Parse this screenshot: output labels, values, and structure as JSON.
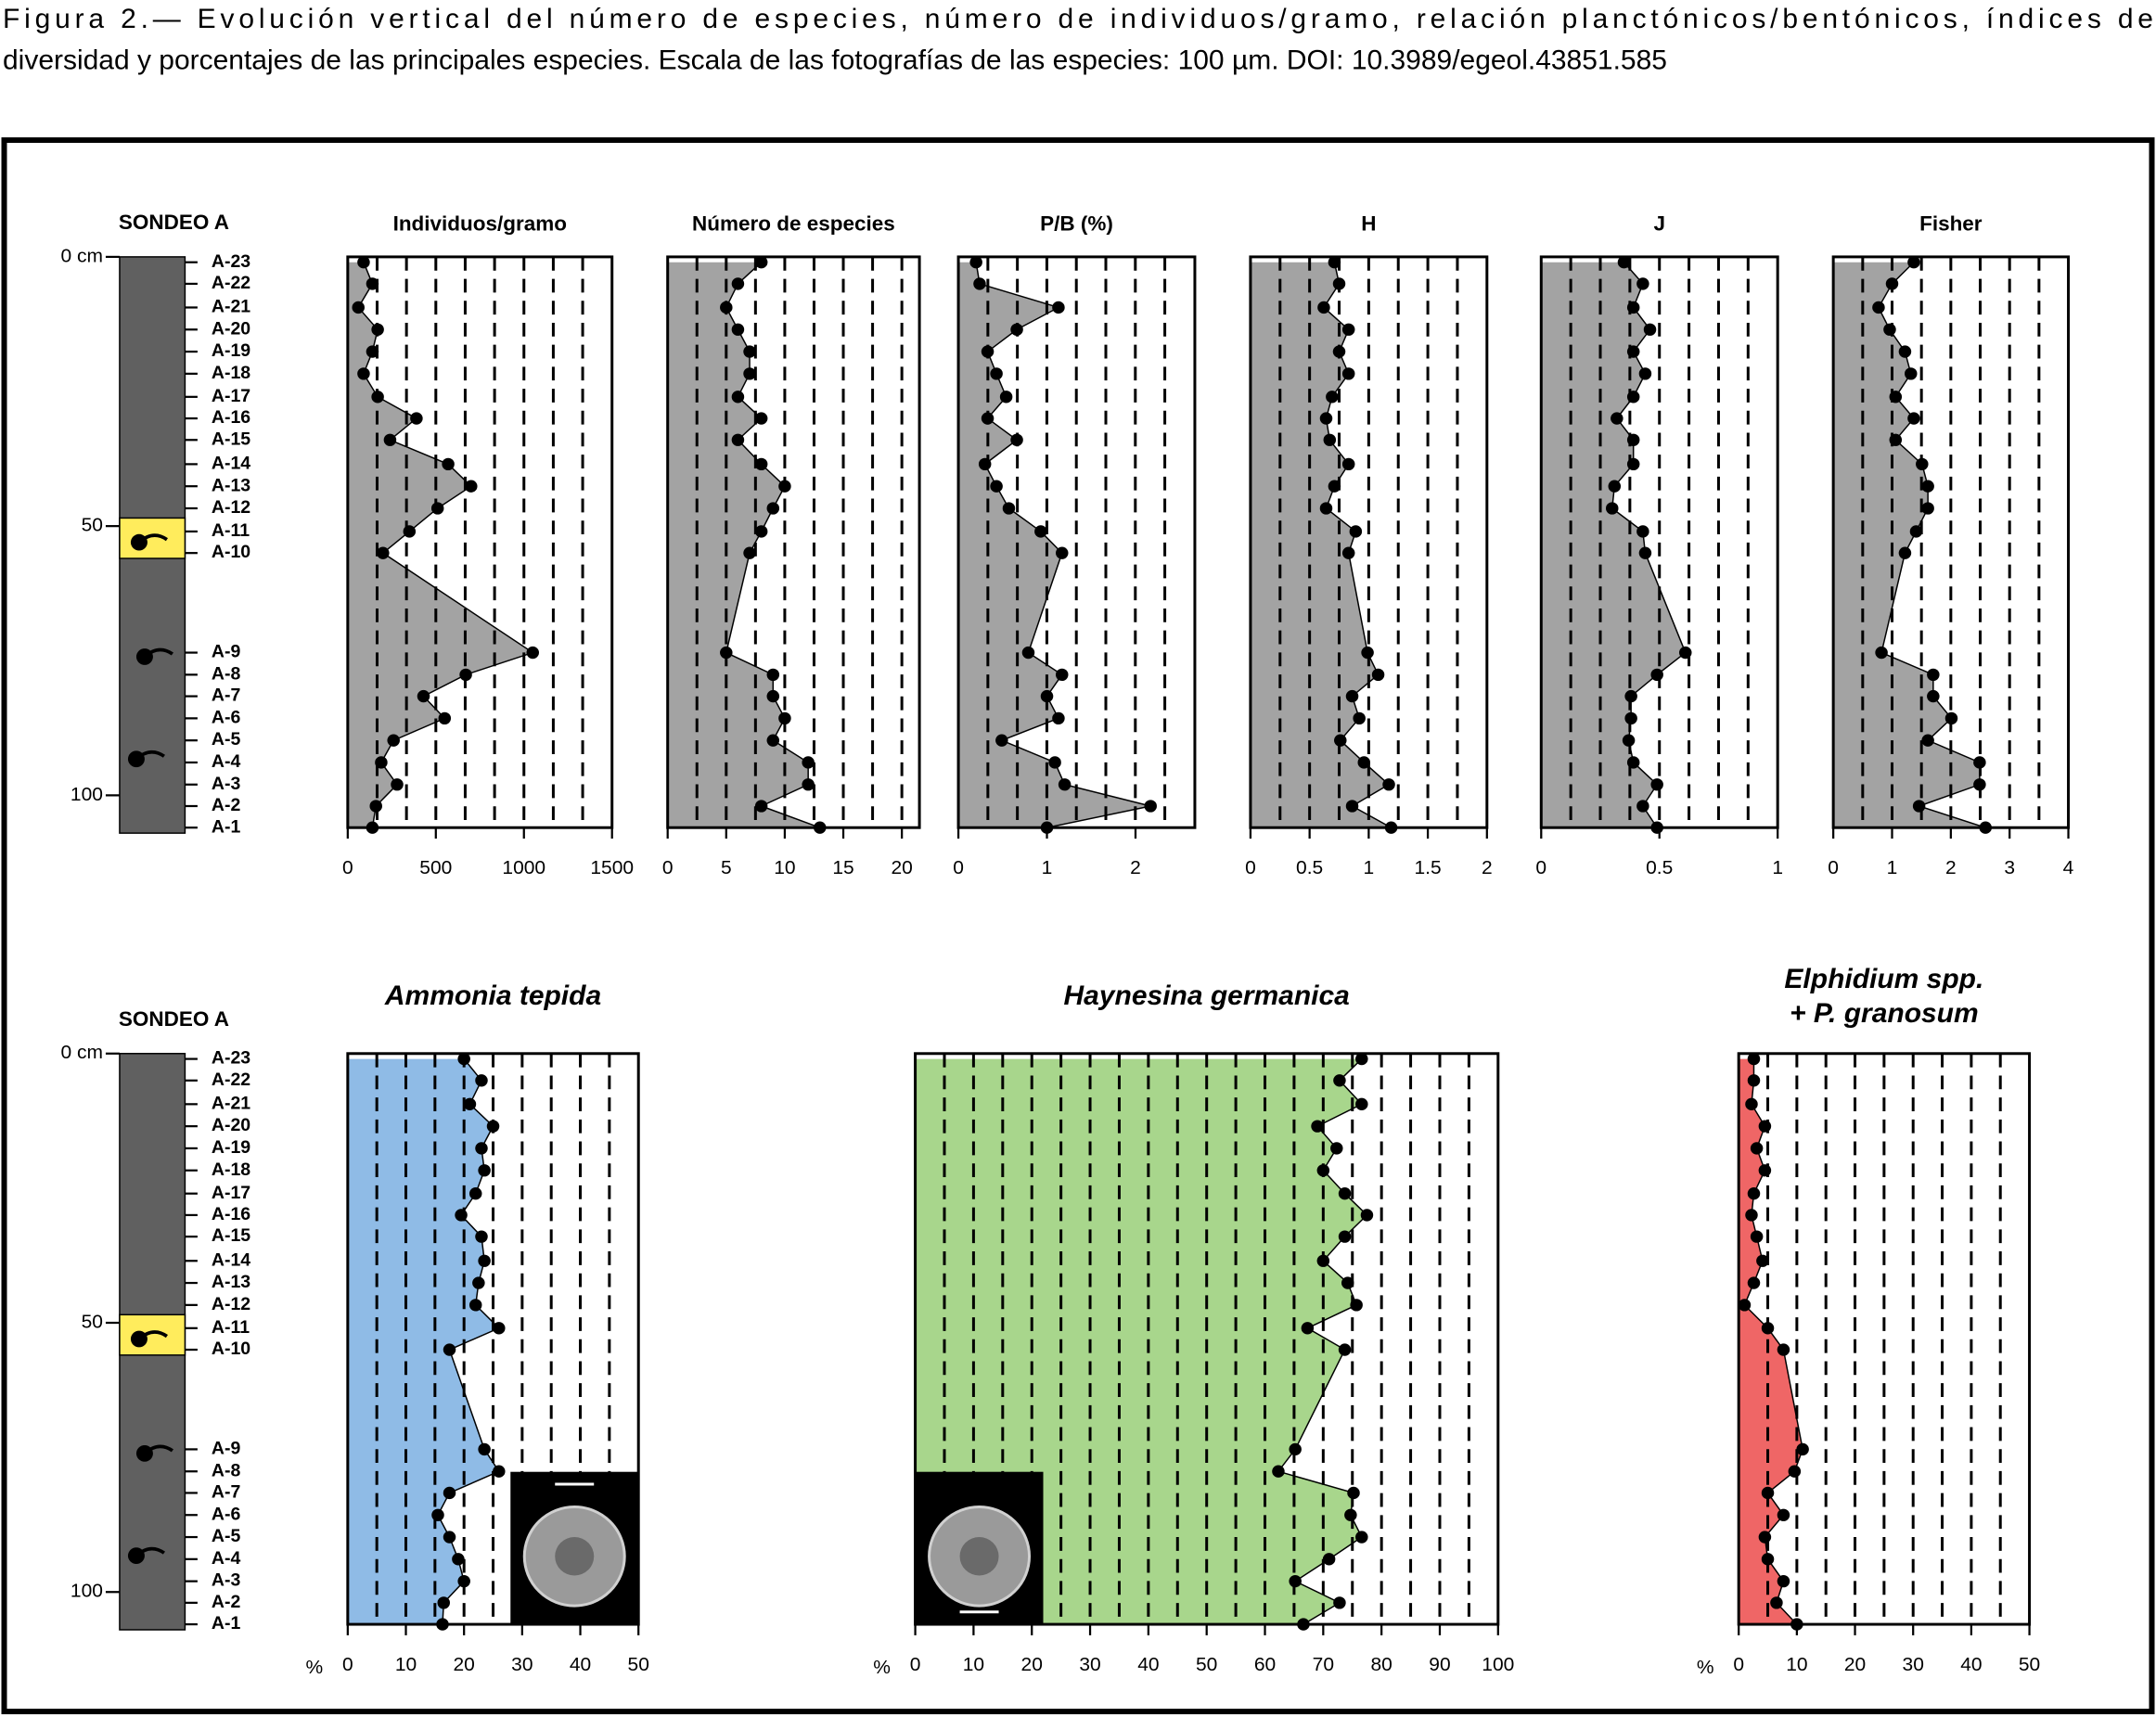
{
  "caption": [
    "Figura 2.— Evolución vertical del número de especies, número de individuos/gramo, relación planctónicos/bentónicos, índices de",
    "diversidad y porcentajes de las principales especies. Escala de las fotografías de las especies: 100 µm. DOI: 10.3989/egeol.43851.585"
  ],
  "core": {
    "title": "SONDEO A",
    "color": "#606060",
    "highlight_color": "#ffec5c",
    "ylim": [
      0,
      106
    ],
    "yticks": [
      {
        "value": 0,
        "label": "0 cm"
      },
      50,
      100
    ],
    "highlight": [
      48.5,
      56
    ],
    "samples": [
      "A-23",
      "A-22",
      "A-21",
      "A-20",
      "A-19",
      "A-18",
      "A-17",
      "A-16",
      "A-15",
      "A-14",
      "A-13",
      "A-12",
      "A-11",
      "A-10",
      "A-9",
      "A-8",
      "A-7",
      "A-6",
      "A-5",
      "A-4",
      "A-3",
      "A-2",
      "A-1"
    ],
    "depths": [
      1,
      5,
      9.4,
      13.5,
      17.6,
      21.7,
      26,
      30,
      34,
      38.5,
      42.6,
      46.7,
      51,
      55,
      73.5,
      77.6,
      81.6,
      85.7,
      89.8,
      93.9,
      98,
      102,
      106
    ]
  },
  "chart_data": [
    {
      "type": "area",
      "title": "Individuos/gramo",
      "color": "#a3a3a3",
      "xlim": [
        0,
        1500
      ],
      "xticks": [
        0,
        500,
        1000,
        1500
      ],
      "grid_step": 166.67,
      "values": [
        90,
        140,
        60,
        170,
        140,
        90,
        170,
        390,
        240,
        570,
        700,
        510,
        350,
        200,
        1050,
        670,
        430,
        550,
        260,
        190,
        280,
        160,
        140
      ]
    },
    {
      "type": "area",
      "title": "Número de especies",
      "color": "#a3a3a3",
      "xlim": [
        0,
        21.5
      ],
      "xticks": [
        0,
        5,
        10,
        15,
        20
      ],
      "grid_step": 2.5,
      "values": [
        8,
        6,
        5,
        6,
        7,
        7,
        6,
        8,
        6,
        8,
        10,
        9,
        8,
        7,
        5,
        9,
        9,
        10,
        9,
        12,
        12,
        8,
        13
      ]
    },
    {
      "type": "area",
      "title": "P/B (%)",
      "color": "#a3a3a3",
      "xlim": [
        0,
        2.67
      ],
      "xticks": [
        0,
        1,
        2
      ],
      "grid_step": 0.333,
      "values": [
        0.2,
        0.24,
        1.13,
        0.66,
        0.33,
        0.43,
        0.54,
        0.33,
        0.66,
        0.3,
        0.43,
        0.57,
        0.93,
        1.17,
        0.79,
        1.17,
        1,
        1.13,
        0.49,
        1.09,
        1.2,
        2.17,
        1
      ]
    },
    {
      "type": "area",
      "title": "H",
      "color": "#a3a3a3",
      "xlim": [
        0,
        2
      ],
      "xticks": [
        0,
        0.5,
        1,
        1.5,
        2
      ],
      "grid_step": 0.25,
      "values": [
        0.71,
        0.75,
        0.62,
        0.83,
        0.75,
        0.83,
        0.69,
        0.64,
        0.67,
        0.83,
        0.71,
        0.64,
        0.89,
        0.83,
        0.99,
        1.08,
        0.86,
        0.92,
        0.76,
        0.96,
        1.17,
        0.86,
        1.19
      ]
    },
    {
      "type": "area",
      "title": "J",
      "color": "#a3a3a3",
      "xlim": [
        0,
        1
      ],
      "xticks": [
        0,
        0.5,
        1
      ],
      "grid_step": 0.125,
      "values": [
        0.35,
        0.43,
        0.39,
        0.46,
        0.39,
        0.44,
        0.39,
        0.32,
        0.39,
        0.39,
        0.31,
        0.3,
        0.43,
        0.44,
        0.61,
        0.49,
        0.38,
        0.38,
        0.37,
        0.39,
        0.49,
        0.43,
        0.49
      ]
    },
    {
      "type": "area",
      "title": "Fisher",
      "color": "#a3a3a3",
      "xlim": [
        0,
        4
      ],
      "xticks": [
        0,
        1,
        2,
        3,
        4
      ],
      "grid_step": 0.5,
      "values": [
        1.37,
        1,
        0.77,
        0.96,
        1.22,
        1.32,
        1.06,
        1.37,
        1.06,
        1.51,
        1.61,
        1.61,
        1.41,
        1.22,
        0.82,
        1.7,
        1.7,
        2.01,
        1.61,
        2.49,
        2.49,
        1.46,
        2.59
      ]
    },
    {
      "type": "area",
      "title": "Ammonia tepida",
      "unit": "%",
      "color": "#8fbbe6",
      "xlim": [
        0,
        50
      ],
      "xticks": [
        0,
        10,
        20,
        30,
        40,
        50
      ],
      "grid_step": 5,
      "values": [
        20,
        23,
        21,
        25,
        23,
        23.5,
        22,
        19.5,
        23,
        23.5,
        22.5,
        22,
        26,
        17.5,
        23.5,
        26,
        17.5,
        15.5,
        17.5,
        19,
        20,
        16.5,
        16.3
      ]
    },
    {
      "type": "area",
      "title": "Haynesina germanica",
      "unit": "%",
      "color": "#a8d68c",
      "xlim": [
        0,
        100
      ],
      "xticks": [
        0,
        10,
        20,
        30,
        40,
        50,
        60,
        70,
        80,
        90,
        100
      ],
      "grid_step": 5,
      "values": [
        76.6,
        72.8,
        76.6,
        69,
        72.3,
        70,
        73.7,
        77.5,
        73.7,
        70,
        74.2,
        75.7,
        67.3,
        73.7,
        65.2,
        62.3,
        75.2,
        74.7,
        76.6,
        71,
        65.2,
        72.8,
        66.6
      ]
    },
    {
      "type": "area",
      "title": [
        "Elphidium spp.",
        "+ P. granosum"
      ],
      "unit": "%",
      "color": "#ef6666",
      "xlim": [
        0,
        50
      ],
      "xticks": [
        0,
        10,
        20,
        30,
        40,
        50
      ],
      "grid_step": 5,
      "values": [
        2.6,
        2.6,
        2.2,
        4.5,
        3.1,
        4.5,
        2.6,
        2.2,
        3.1,
        4.1,
        2.6,
        1,
        5,
        7.7,
        11,
        9.6,
        5,
        7.7,
        4.5,
        5,
        7.7,
        6.5,
        10
      ]
    }
  ]
}
